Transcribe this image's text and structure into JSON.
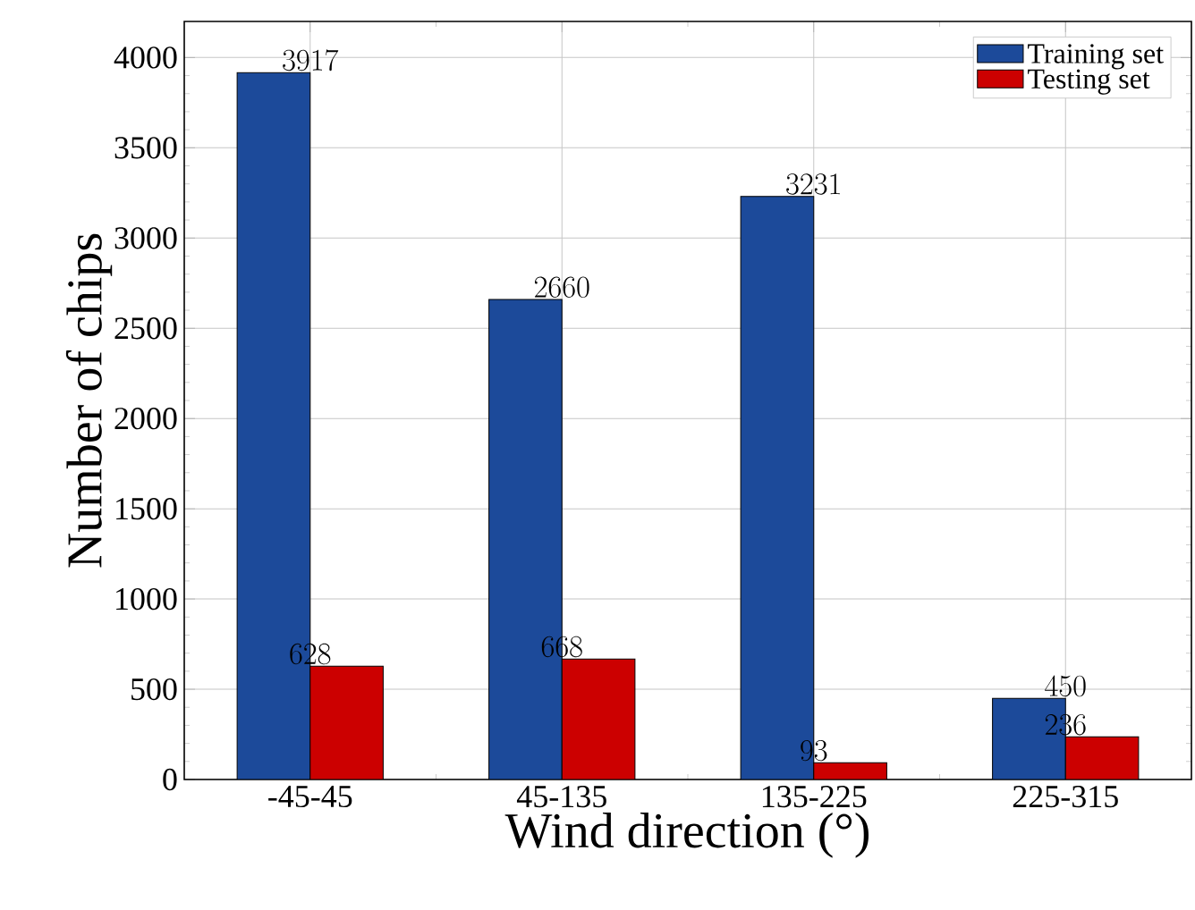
{
  "chart_data": {
    "type": "bar",
    "xlabel": "Wind direction (°)",
    "ylabel": "Number of chips",
    "categories": [
      "-45-45",
      "45-135",
      "135-225",
      "225-315"
    ],
    "series": [
      {
        "name": "Training set",
        "color": "#1c4a9a",
        "values": [
          3917,
          2660,
          3231,
          450
        ]
      },
      {
        "name": "Testing set",
        "color": "#cc0000",
        "values": [
          628,
          668,
          93,
          236
        ]
      }
    ],
    "ylim": [
      0,
      4200
    ],
    "yticks": [
      0,
      500,
      1000,
      1500,
      2000,
      2500,
      3000,
      3500,
      4000
    ],
    "grid": true,
    "legend": "top right",
    "data_labels": true
  }
}
